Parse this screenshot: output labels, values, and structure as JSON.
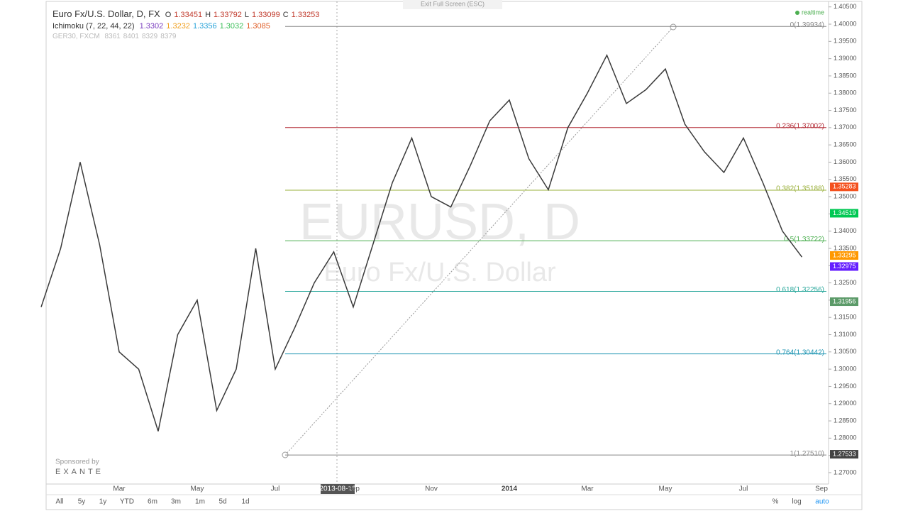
{
  "header": {
    "symbol": "Euro Fx/U.S. Dollar, D, FX",
    "ohlc": [
      {
        "key": "O",
        "value": "1.33451"
      },
      {
        "key": "H",
        "value": "1.33792"
      },
      {
        "key": "L",
        "value": "1.33099"
      },
      {
        "key": "C",
        "value": "1.33253"
      }
    ],
    "indicator": "Ichimoku (7, 22, 44, 22)",
    "indicator_values": [
      "1.3302",
      "1.3232",
      "1.3356",
      "1.3032",
      "1.3085"
    ],
    "compare": "GER30, FXCM",
    "compare_values": [
      "8361",
      "8401",
      "8329",
      "8379"
    ],
    "exit": "Exit Full Screen (ESC)",
    "realtime": "realtime"
  },
  "watermark": {
    "symbol": "EURUSD, D",
    "name": "Euro Fx/U.S. Dollar"
  },
  "sponsor": {
    "label": "Sponsored by",
    "brand": "EXANTE"
  },
  "crosshair_date": "2013-08-16",
  "toolbar": {
    "ranges": [
      "All",
      "5y",
      "1y",
      "YTD",
      "6m",
      "3m",
      "1m",
      "5d",
      "1d"
    ],
    "options": [
      "%",
      "log",
      "auto"
    ]
  },
  "chart_data": {
    "type": "line",
    "color": "#3a3a3a",
    "categories": [
      null,
      null,
      null,
      null,
      "Mar",
      null,
      null,
      null,
      "May",
      null,
      null,
      null,
      "Jul",
      null,
      null,
      null,
      "Sep",
      null,
      null,
      null,
      "Nov",
      null,
      null,
      null,
      "2014",
      null,
      null,
      null,
      "Mar",
      null,
      null,
      null,
      "May",
      null,
      null,
      null,
      "Jul",
      null,
      null,
      null,
      "Sep"
    ],
    "values": [
      1.318,
      1.335,
      1.36,
      1.336,
      1.305,
      1.3,
      1.282,
      1.31,
      1.32,
      1.288,
      1.3,
      1.335,
      1.3,
      1.312,
      1.325,
      1.334,
      1.318,
      1.336,
      1.354,
      1.367,
      1.35,
      1.347,
      1.359,
      1.372,
      1.378,
      1.361,
      1.352,
      1.37,
      1.38,
      1.391,
      1.377,
      1.381,
      1.387,
      1.371,
      1.363,
      1.357,
      1.367,
      1.354,
      1.34,
      1.3325,
      null
    ],
    "ylim": [
      1.2667,
      1.407
    ],
    "yticks": [
      {
        "value": 1.27,
        "label": "1.27000"
      },
      {
        "value": 1.275,
        "label": "1.27500"
      },
      {
        "value": 1.28,
        "label": "1.28000"
      },
      {
        "value": 1.285,
        "label": "1.28500"
      },
      {
        "value": 1.29,
        "label": "1.29000"
      },
      {
        "value": 1.295,
        "label": "1.29500"
      },
      {
        "value": 1.3,
        "label": "1.30000"
      },
      {
        "value": 1.305,
        "label": "1.30500"
      },
      {
        "value": 1.31,
        "label": "1.31000"
      },
      {
        "value": 1.315,
        "label": "1.31500"
      },
      {
        "value": 1.32,
        "label": "1.32000"
      },
      {
        "value": 1.325,
        "label": "1.32500"
      },
      {
        "value": 1.33,
        "label": "1.33000"
      },
      {
        "value": 1.335,
        "label": "1.33500"
      },
      {
        "value": 1.34,
        "label": "1.34000"
      },
      {
        "value": 1.345,
        "label": "1.34500"
      },
      {
        "value": 1.35,
        "label": "1.35000"
      },
      {
        "value": 1.355,
        "label": "1.35500"
      },
      {
        "value": 1.36,
        "label": "1.36000"
      },
      {
        "value": 1.365,
        "label": "1.36500"
      },
      {
        "value": 1.37,
        "label": "1.37000"
      },
      {
        "value": 1.375,
        "label": "1.37500"
      },
      {
        "value": 1.38,
        "label": "1.38000"
      },
      {
        "value": 1.385,
        "label": "1.38500"
      },
      {
        "value": 1.39,
        "label": "1.39000"
      },
      {
        "value": 1.395,
        "label": "1.39500"
      },
      {
        "value": 1.4,
        "label": "1.40000"
      },
      {
        "value": 1.405,
        "label": "1.40500"
      }
    ],
    "fib_levels": [
      {
        "value": 1.39934,
        "label": "0(1.39934)",
        "color": "#888888"
      },
      {
        "value": 1.37002,
        "label": "0.236(1.37002)",
        "color": "#b22833"
      },
      {
        "value": 1.35188,
        "label": "0.382(1.35188)",
        "color": "#9ab03b"
      },
      {
        "value": 1.33722,
        "label": "0.5(1.33722)",
        "color": "#4caf50"
      },
      {
        "value": 1.32256,
        "label": "0.618(1.32256)",
        "color": "#26a69a"
      },
      {
        "value": 1.30442,
        "label": "0.764(1.30442)",
        "color": "#2196b3"
      },
      {
        "value": 1.2751,
        "label": "1(1.27510)",
        "color": "#888888"
      }
    ],
    "price_labels": [
      {
        "value": 1.35283,
        "label": "1.35283",
        "color": "#f4511e"
      },
      {
        "value": 1.34519,
        "label": "1.34519",
        "color": "#00c853"
      },
      {
        "value": 1.33295,
        "label": "1.33295",
        "color": "#ff9800"
      },
      {
        "value": 1.32975,
        "label": "1.32975",
        "color": "#651fff"
      },
      {
        "value": 1.31956,
        "label": "1.31956",
        "color": "#5b9a68"
      },
      {
        "value": 1.27533,
        "label": "1.27533",
        "color": "#444444"
      }
    ]
  }
}
